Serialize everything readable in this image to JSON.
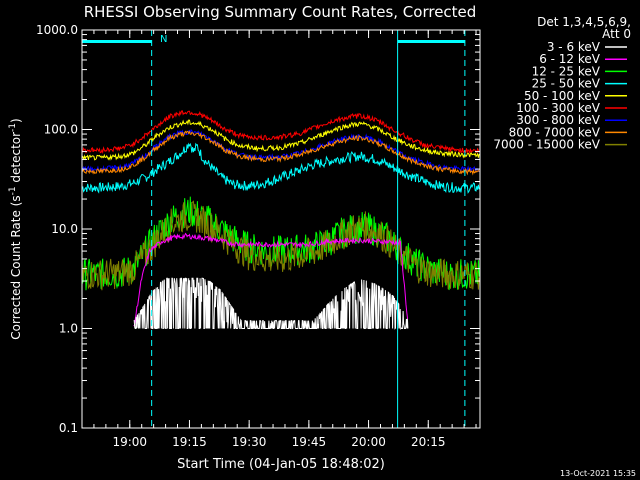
{
  "chart_data": {
    "type": "line",
    "title": "RHESSI Observing Summary Count Rates, Corrected",
    "xlabel": "Start Time (04-Jan-05 18:48:02)",
    "ylabel_prefix": "Corrected Count Rate (s",
    "ylabel_exp1": "-1",
    "ylabel_mid": " detector",
    "ylabel_exp2": "-1",
    "ylabel_suffix": ")",
    "x_unit": "minutes after 18:48:02",
    "xlim": [
      0,
      100
    ],
    "ylim": [
      0.1,
      1000
    ],
    "yscale": "log",
    "x_ticks": [
      {
        "x": 12,
        "label": "19:00"
      },
      {
        "x": 27,
        "label": "19:15"
      },
      {
        "x": 42,
        "label": "19:30"
      },
      {
        "x": 57,
        "label": "19:45"
      },
      {
        "x": 72,
        "label": "20:00"
      },
      {
        "x": 87,
        "label": "20:15"
      }
    ],
    "y_ticks": [
      {
        "y": 0.1,
        "label": "0.1"
      },
      {
        "y": 1,
        "label": "1.0"
      },
      {
        "y": 10,
        "label": "10.0"
      },
      {
        "y": 100,
        "label": "100.0"
      },
      {
        "y": 1000,
        "label": "1000.0"
      }
    ],
    "legend_header": [
      "Det 1,3,4,5,6,9,",
      "Att 0"
    ],
    "legend_position": "outside-right",
    "annotation": "N",
    "footer": "13-Oct-2021 15:35",
    "vertical_markers": [
      {
        "x": 0,
        "style": "solid",
        "color": "#00ffff"
      },
      {
        "x": 17.5,
        "style": "dashed",
        "color": "#00ffff"
      },
      {
        "x": 79.3,
        "style": "solid",
        "color": "#00ffff"
      },
      {
        "x": 96.2,
        "style": "dashed",
        "color": "#00ffff"
      }
    ],
    "night_bars": [
      [
        0,
        17.5
      ],
      [
        79.3,
        96.2
      ]
    ],
    "series": [
      {
        "name": "3 - 6 keV",
        "color": "#ffffff",
        "x": [
          13,
          15,
          17,
          20,
          23,
          26,
          29,
          32,
          35,
          37,
          40,
          45,
          50,
          55,
          58,
          60,
          62,
          65,
          68,
          70,
          72,
          75,
          78,
          80,
          82
        ],
        "y": [
          1.0,
          1.3,
          1.8,
          2.5,
          2.9,
          3.0,
          2.8,
          2.5,
          2.0,
          1.5,
          1.0,
          1.0,
          1.0,
          1.0,
          1.0,
          1.2,
          1.5,
          2.0,
          2.4,
          2.6,
          2.5,
          2.2,
          1.8,
          1.4,
          1.0
        ]
      },
      {
        "name": "6 - 12 keV",
        "color": "#ff00ff",
        "x": [
          13,
          15,
          17,
          20,
          23,
          26,
          29,
          32,
          35,
          37,
          40,
          45,
          50,
          55,
          58,
          60,
          62,
          65,
          68,
          70,
          72,
          75,
          78,
          80,
          82
        ],
        "y": [
          1.0,
          3.2,
          6.0,
          7.5,
          8.2,
          8.5,
          8.3,
          8.0,
          7.6,
          7.2,
          7.0,
          7.0,
          7.0,
          7.0,
          7.1,
          7.3,
          7.5,
          7.6,
          7.7,
          7.7,
          7.6,
          7.5,
          7.4,
          7.2,
          1.0
        ]
      },
      {
        "name": "12 - 25 keV",
        "color": "#00ff00",
        "x": [
          0,
          5,
          10,
          13,
          16,
          19,
          22,
          25,
          27,
          29,
          32,
          35,
          38,
          42,
          46,
          50,
          54,
          58,
          62,
          65,
          68,
          71,
          74,
          77,
          80,
          84,
          88,
          92,
          96,
          100
        ],
        "y": [
          3.5,
          3.5,
          3.6,
          4.0,
          6.0,
          9.0,
          12.0,
          14.5,
          15.0,
          14.0,
          12.0,
          10.0,
          8.0,
          6.5,
          6.0,
          6.0,
          6.2,
          6.5,
          7.5,
          9.0,
          10.0,
          10.5,
          9.5,
          8.0,
          6.0,
          4.5,
          3.8,
          3.5,
          3.5,
          3.4
        ]
      },
      {
        "name": "25 - 50 keV",
        "color": "#00ffff",
        "x": [
          0,
          5,
          10,
          13,
          16,
          19,
          22,
          24,
          26,
          27,
          28,
          29,
          30,
          31,
          33,
          35,
          38,
          42,
          46,
          50,
          54,
          58,
          62,
          66,
          70,
          74,
          78,
          82,
          86,
          90,
          94,
          98,
          100
        ],
        "y": [
          26,
          26,
          27,
          29,
          33,
          40,
          48,
          55,
          65,
          75,
          60,
          68,
          55,
          48,
          40,
          33,
          28,
          27,
          29,
          33,
          38,
          44,
          48,
          52,
          54,
          50,
          42,
          35,
          30,
          27,
          26,
          26,
          26
        ]
      },
      {
        "name": "50 - 100 keV",
        "color": "#ffff00",
        "x": [
          0,
          5,
          10,
          13,
          16,
          19,
          22,
          25,
          27,
          30,
          33,
          36,
          40,
          45,
          50,
          55,
          60,
          64,
          68,
          70,
          72,
          75,
          78,
          82,
          86,
          90,
          95,
          100
        ],
        "y": [
          52,
          52,
          54,
          58,
          70,
          88,
          105,
          115,
          118,
          112,
          98,
          80,
          68,
          64,
          66,
          73,
          88,
          102,
          112,
          114,
          110,
          98,
          84,
          70,
          62,
          58,
          56,
          55
        ]
      },
      {
        "name": "100 - 300 keV",
        "color": "#ff0000",
        "x": [
          0,
          5,
          10,
          13,
          16,
          19,
          22,
          25,
          27,
          30,
          33,
          36,
          40,
          45,
          50,
          55,
          60,
          64,
          68,
          70,
          72,
          75,
          78,
          82,
          86,
          90,
          95,
          100
        ],
        "y": [
          62,
          62,
          65,
          72,
          88,
          110,
          135,
          148,
          150,
          140,
          120,
          100,
          86,
          82,
          84,
          92,
          110,
          125,
          135,
          137,
          132,
          118,
          100,
          82,
          70,
          65,
          62,
          61
        ]
      },
      {
        "name": "300 - 800 keV",
        "color": "#0000ff",
        "x": [
          0,
          5,
          10,
          13,
          16,
          19,
          22,
          25,
          27,
          30,
          33,
          36,
          40,
          45,
          50,
          55,
          60,
          64,
          68,
          70,
          72,
          75,
          78,
          82,
          86,
          90,
          95,
          100
        ],
        "y": [
          40,
          40,
          42,
          46,
          55,
          70,
          85,
          93,
          95,
          90,
          78,
          64,
          55,
          52,
          53,
          58,
          68,
          78,
          84,
          85,
          82,
          74,
          63,
          52,
          46,
          42,
          40,
          40
        ]
      },
      {
        "name": "800 - 7000 keV",
        "color": "#ff8800",
        "x": [
          0,
          5,
          10,
          13,
          16,
          19,
          22,
          25,
          27,
          30,
          33,
          36,
          40,
          45,
          50,
          55,
          60,
          64,
          68,
          70,
          72,
          75,
          78,
          82,
          86,
          90,
          95,
          100
        ],
        "y": [
          38,
          38,
          40,
          44,
          53,
          67,
          82,
          90,
          92,
          87,
          75,
          62,
          53,
          50,
          51,
          56,
          66,
          75,
          81,
          82,
          79,
          71,
          61,
          50,
          44,
          40,
          38,
          38
        ]
      },
      {
        "name": "7000 - 15000 keV",
        "color": "#808000",
        "x": [
          0,
          5,
          10,
          13,
          16,
          19,
          22,
          25,
          27,
          29,
          32,
          35,
          38,
          42,
          46,
          50,
          54,
          58,
          62,
          65,
          68,
          71,
          74,
          77,
          80,
          84,
          88,
          92,
          96,
          100
        ],
        "y": [
          3.5,
          3.5,
          3.6,
          4.0,
          5.5,
          8.0,
          11.0,
          13.0,
          13.5,
          13.0,
          11.0,
          9.0,
          7.0,
          5.5,
          5.0,
          5.0,
          5.3,
          5.8,
          7.0,
          8.5,
          10.0,
          10.5,
          9.5,
          7.5,
          5.5,
          4.2,
          3.6,
          3.5,
          3.5,
          3.5
        ]
      }
    ]
  }
}
